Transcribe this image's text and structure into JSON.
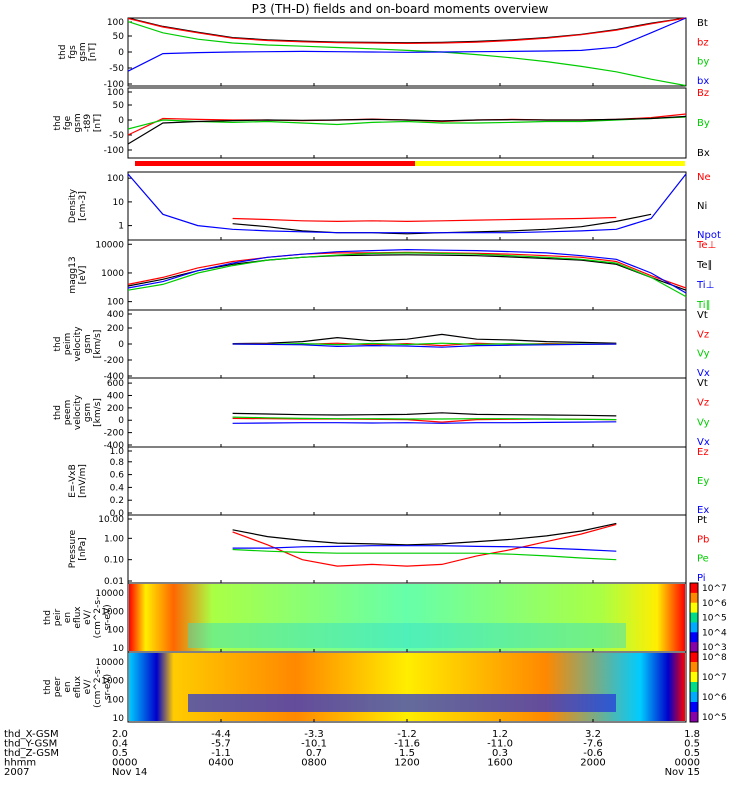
{
  "title": "P3 (TH-D) fields and on-board moments overview",
  "chart_data": [
    {
      "type": "line",
      "ylabel": [
        "thd",
        "fgs",
        "gsm",
        "[nT]"
      ],
      "yticks": [
        "100",
        "50",
        "0",
        "-50",
        "-100"
      ],
      "ylim": [
        -100,
        100
      ],
      "series": [
        {
          "name": "Bt",
          "color": "#000000",
          "values": [
            110,
            80,
            62,
            45,
            38,
            34,
            31,
            30,
            29,
            30,
            33,
            38,
            45,
            55,
            70,
            90,
            120
          ]
        },
        {
          "name": "bz",
          "color": "#ff0000",
          "values": [
            105,
            78,
            60,
            43,
            36,
            32,
            29,
            28,
            27,
            28,
            31,
            36,
            43,
            54,
            68,
            88,
            115
          ]
        },
        {
          "name": "by",
          "color": "#00cc00",
          "values": [
            95,
            60,
            40,
            28,
            22,
            18,
            14,
            10,
            5,
            0,
            -8,
            -18,
            -30,
            -45,
            -62,
            -85,
            -105
          ]
        },
        {
          "name": "bx",
          "color": "#0000ff",
          "values": [
            -60,
            -5,
            -2,
            0,
            1,
            2,
            1,
            0,
            -1,
            0,
            1,
            2,
            3,
            5,
            15,
            60,
            110
          ]
        }
      ]
    },
    {
      "type": "line",
      "ylabel": [
        "thd",
        "fge",
        "gsm",
        "-t89",
        "[nT]"
      ],
      "yticks": [
        "100",
        "50",
        "0",
        "-50",
        "-100"
      ],
      "ylim": [
        -120,
        100
      ],
      "series": [
        {
          "name": "Bz",
          "color": "#ff0000",
          "values": [
            -50,
            5,
            2,
            0,
            0,
            -2,
            0,
            3,
            0,
            -5,
            0,
            2,
            0,
            0,
            2,
            8,
            20
          ]
        },
        {
          "name": "By",
          "color": "#00cc00",
          "values": [
            -30,
            0,
            -5,
            -8,
            -5,
            -10,
            -15,
            -8,
            -5,
            -10,
            -10,
            -8,
            -5,
            -5,
            0,
            5,
            10
          ]
        },
        {
          "name": "Bx",
          "color": "#000000",
          "values": [
            -80,
            -10,
            -5,
            -2,
            0,
            -1,
            0,
            2,
            0,
            -3,
            0,
            1,
            0,
            0,
            2,
            5,
            12
          ]
        }
      ]
    },
    {
      "type": "line",
      "scale": "log",
      "ylabel": [
        "Density",
        "[cm-3]"
      ],
      "yticks": [
        "100",
        "10",
        "1"
      ],
      "ylim": [
        0.3,
        150
      ],
      "series": [
        {
          "name": "Ne",
          "color": "#ff0000",
          "values": [
            null,
            null,
            null,
            2,
            1.8,
            1.6,
            1.5,
            1.6,
            1.5,
            1.6,
            1.7,
            1.8,
            1.9,
            2,
            2.2,
            null,
            null
          ]
        },
        {
          "name": "Ni",
          "color": "#000000",
          "values": [
            null,
            null,
            null,
            1.2,
            0.9,
            0.6,
            0.5,
            0.5,
            0.45,
            0.5,
            0.55,
            0.6,
            0.7,
            0.9,
            1.5,
            3,
            null
          ]
        },
        {
          "name": "Npot",
          "color": "#0000ff",
          "values": [
            150,
            3,
            1,
            0.7,
            0.6,
            0.55,
            0.5,
            0.5,
            0.5,
            0.5,
            0.5,
            0.5,
            0.55,
            0.6,
            0.7,
            2,
            150
          ]
        }
      ]
    },
    {
      "type": "line",
      "scale": "log",
      "ylabel": [
        "magg13",
        "[eV]"
      ],
      "yticks": [
        "10000",
        "1000",
        "100"
      ],
      "ylim": [
        60,
        12000
      ],
      "series": [
        {
          "name": "Te⊥",
          "color": "#ff0000",
          "values": [
            400,
            700,
            1500,
            2500,
            3500,
            4500,
            5000,
            5000,
            5200,
            5000,
            4800,
            4500,
            4000,
            3500,
            2500,
            800,
            300
          ]
        },
        {
          "name": "Te∥",
          "color": "#000000",
          "values": [
            350,
            600,
            1200,
            2000,
            2800,
            3500,
            4000,
            4200,
            4300,
            4200,
            4000,
            3600,
            3200,
            2800,
            2000,
            700,
            250
          ]
        },
        {
          "name": "Ti⊥",
          "color": "#0000ff",
          "values": [
            300,
            500,
            1200,
            2200,
            3500,
            4500,
            5500,
            6000,
            6500,
            6200,
            6000,
            5500,
            5000,
            4000,
            3000,
            1000,
            200
          ]
        },
        {
          "name": "Ti∥",
          "color": "#00cc00",
          "values": [
            250,
            400,
            1000,
            1800,
            2800,
            3500,
            4200,
            4800,
            5000,
            4800,
            4500,
            4000,
            3500,
            3000,
            2200,
            700,
            150
          ]
        }
      ]
    },
    {
      "type": "line",
      "ylabel": [
        "thd",
        "peim",
        "velocity",
        "gsm",
        "[km/s]"
      ],
      "yticks": [
        "400",
        "200",
        "0",
        "-200",
        "-400"
      ],
      "ylim": [
        -400,
        400
      ],
      "series": [
        {
          "name": "Vt",
          "color": "#000000",
          "values": [
            null,
            null,
            null,
            5,
            10,
            30,
            80,
            40,
            60,
            120,
            60,
            50,
            30,
            20,
            10,
            null,
            null
          ]
        },
        {
          "name": "Vz",
          "color": "#ff0000",
          "values": [
            null,
            null,
            null,
            0,
            2,
            -5,
            10,
            -10,
            5,
            -20,
            10,
            -5,
            5,
            0,
            0,
            null,
            null
          ]
        },
        {
          "name": "Vy",
          "color": "#00cc00",
          "values": [
            null,
            null,
            null,
            0,
            -3,
            5,
            -8,
            6,
            -6,
            10,
            -5,
            4,
            -3,
            0,
            0,
            null,
            null
          ]
        },
        {
          "name": "Vx",
          "color": "#0000ff",
          "values": [
            null,
            null,
            null,
            0,
            -5,
            -10,
            -30,
            -20,
            -25,
            -40,
            -20,
            -15,
            -10,
            -5,
            0,
            null,
            null
          ]
        }
      ]
    },
    {
      "type": "line",
      "ylabel": [
        "thd",
        "peem",
        "velocity",
        "gsm",
        "[km/s]"
      ],
      "yticks": [
        "600",
        "400",
        "200",
        "0",
        "-200",
        "-400"
      ],
      "ylim": [
        -400,
        650
      ],
      "series": [
        {
          "name": "Vt",
          "color": "#000000",
          "values": [
            null,
            null,
            null,
            110,
            100,
            90,
            85,
            90,
            95,
            120,
            95,
            90,
            85,
            80,
            70,
            null,
            null
          ]
        },
        {
          "name": "Vz",
          "color": "#ff0000",
          "values": [
            null,
            null,
            null,
            30,
            25,
            20,
            20,
            15,
            10,
            -30,
            10,
            15,
            20,
            15,
            10,
            null,
            null
          ]
        },
        {
          "name": "Vy",
          "color": "#00cc00",
          "values": [
            null,
            null,
            null,
            50,
            40,
            30,
            25,
            25,
            20,
            20,
            25,
            25,
            20,
            15,
            10,
            null,
            null
          ]
        },
        {
          "name": "Vx",
          "color": "#0000ff",
          "values": [
            null,
            null,
            null,
            -50,
            -45,
            -40,
            -40,
            -45,
            -40,
            -50,
            -40,
            -40,
            -35,
            -30,
            -25,
            null,
            null
          ]
        }
      ]
    },
    {
      "type": "line",
      "ylabel": [
        "E=-VxB",
        "[mV/m]"
      ],
      "yticks": [
        "1.0",
        "0.8",
        "0.6",
        "0.4",
        "0.2",
        "0.0"
      ],
      "ylim": [
        0,
        1
      ],
      "series": [
        {
          "name": "Ez",
          "color": "#ff0000",
          "values": []
        },
        {
          "name": "Ey",
          "color": "#00cc00",
          "values": []
        },
        {
          "name": "Ex",
          "color": "#0000ff",
          "values": []
        }
      ]
    },
    {
      "type": "line",
      "scale": "log",
      "ylabel": [
        "Pressure",
        "[nPa]"
      ],
      "yticks": [
        "10.00",
        "1.00",
        "0.10",
        "0.01"
      ],
      "ylim": [
        0.01,
        10
      ],
      "series": [
        {
          "name": "Pt",
          "color": "#000000",
          "values": [
            null,
            null,
            null,
            2.5,
            1.2,
            0.8,
            0.6,
            0.55,
            0.5,
            0.55,
            0.7,
            0.9,
            1.3,
            2.2,
            5,
            null,
            null
          ]
        },
        {
          "name": "Pb",
          "color": "#ff0000",
          "values": [
            null,
            null,
            null,
            2,
            0.5,
            0.1,
            0.05,
            0.06,
            0.05,
            0.06,
            0.15,
            0.3,
            0.7,
            1.6,
            4.5,
            null,
            null
          ]
        },
        {
          "name": "Pe",
          "color": "#00cc00",
          "values": [
            null,
            null,
            null,
            0.3,
            0.25,
            0.22,
            0.2,
            0.2,
            0.2,
            0.2,
            0.2,
            0.18,
            0.15,
            0.12,
            0.1,
            null,
            null
          ]
        },
        {
          "name": "Pi",
          "color": "#0000ff",
          "values": [
            null,
            null,
            null,
            0.35,
            0.35,
            0.4,
            0.42,
            0.45,
            0.45,
            0.45,
            0.42,
            0.4,
            0.35,
            0.3,
            0.25,
            null,
            null
          ]
        }
      ]
    },
    {
      "type": "heatmap",
      "ylabel": [
        "thd",
        "peir",
        "en",
        "eflux",
        "eV/",
        "(cm^2-s-",
        "sr-eV)"
      ],
      "yticks": [
        "10000",
        "1000",
        "100",
        "10"
      ],
      "colorbar": [
        "10^7",
        "10^6",
        "10^5",
        "10^4",
        "10^3"
      ]
    },
    {
      "type": "heatmap",
      "ylabel": [
        "thd",
        "peer",
        "en",
        "eflux",
        "eV/",
        "(cm^2-s-",
        "sr-eV)"
      ],
      "yticks": [
        "10000",
        "1000",
        "100",
        "10"
      ],
      "colorbar": [
        "10^8",
        "10^7",
        "10^6",
        "10^5"
      ]
    }
  ],
  "xaxis": {
    "rows": [
      {
        "label": "thd_X-GSM",
        "values": [
          "2.0",
          "-4.4",
          "-3.3",
          "-1.2",
          "1.2",
          "3.2",
          "1.8"
        ]
      },
      {
        "label": "thd_Y-GSM",
        "values": [
          "0.4",
          "-5.7",
          "-10.1",
          "-11.6",
          "-11.0",
          "-7.6",
          "0.5"
        ]
      },
      {
        "label": "thd_Z-GSM",
        "values": [
          "0.5",
          "-1.1",
          "0.7",
          "1.5",
          "0.3",
          "-0.6",
          "0.5"
        ]
      },
      {
        "label": "hhmm",
        "values": [
          "0000",
          "0400",
          "0800",
          "1200",
          "1600",
          "2000",
          "0000"
        ]
      },
      {
        "label": "2007",
        "values": [
          "Nov 14",
          "",
          "",
          "",
          "",
          "",
          "Nov 15"
        ]
      }
    ]
  }
}
